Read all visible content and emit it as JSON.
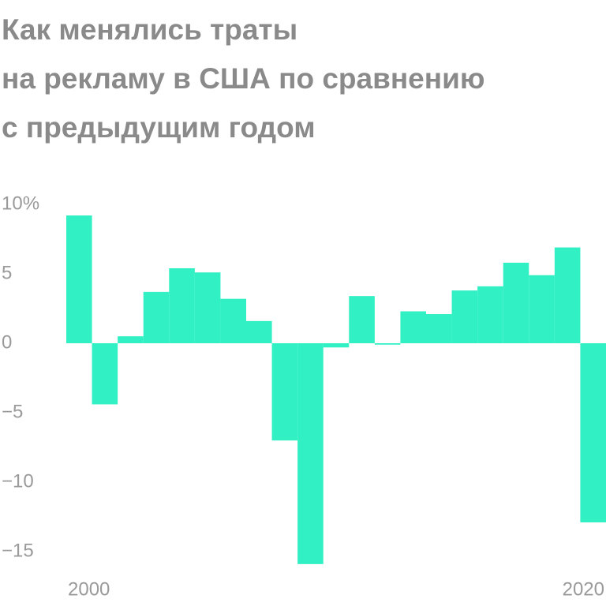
{
  "chart_data": {
    "type": "bar",
    "title": [
      "Как менялись траты",
      "на рекламу в США по сравнению",
      "с предыдущим годом"
    ],
    "categories": [
      "2000",
      null,
      null,
      null,
      null,
      null,
      null,
      null,
      null,
      null,
      null,
      null,
      null,
      null,
      null,
      null,
      null,
      null,
      null,
      null,
      "2020"
    ],
    "values": [
      9.2,
      -4.4,
      0.5,
      3.7,
      5.4,
      5.1,
      3.2,
      1.6,
      -7.0,
      -15.9,
      -0.3,
      3.4,
      -0.1,
      2.3,
      2.1,
      3.8,
      4.1,
      5.8,
      4.9,
      6.9,
      -12.9
    ],
    "color": "#30f0c4",
    "ylim": [
      -16.3,
      10.5
    ],
    "yticks": [
      {
        "value": 10,
        "label": "10%"
      },
      5,
      0,
      {
        "value": -5,
        "label": "−5"
      },
      {
        "value": -10,
        "label": "−10"
      },
      {
        "value": -15,
        "label": "−15"
      }
    ],
    "grid": false
  }
}
